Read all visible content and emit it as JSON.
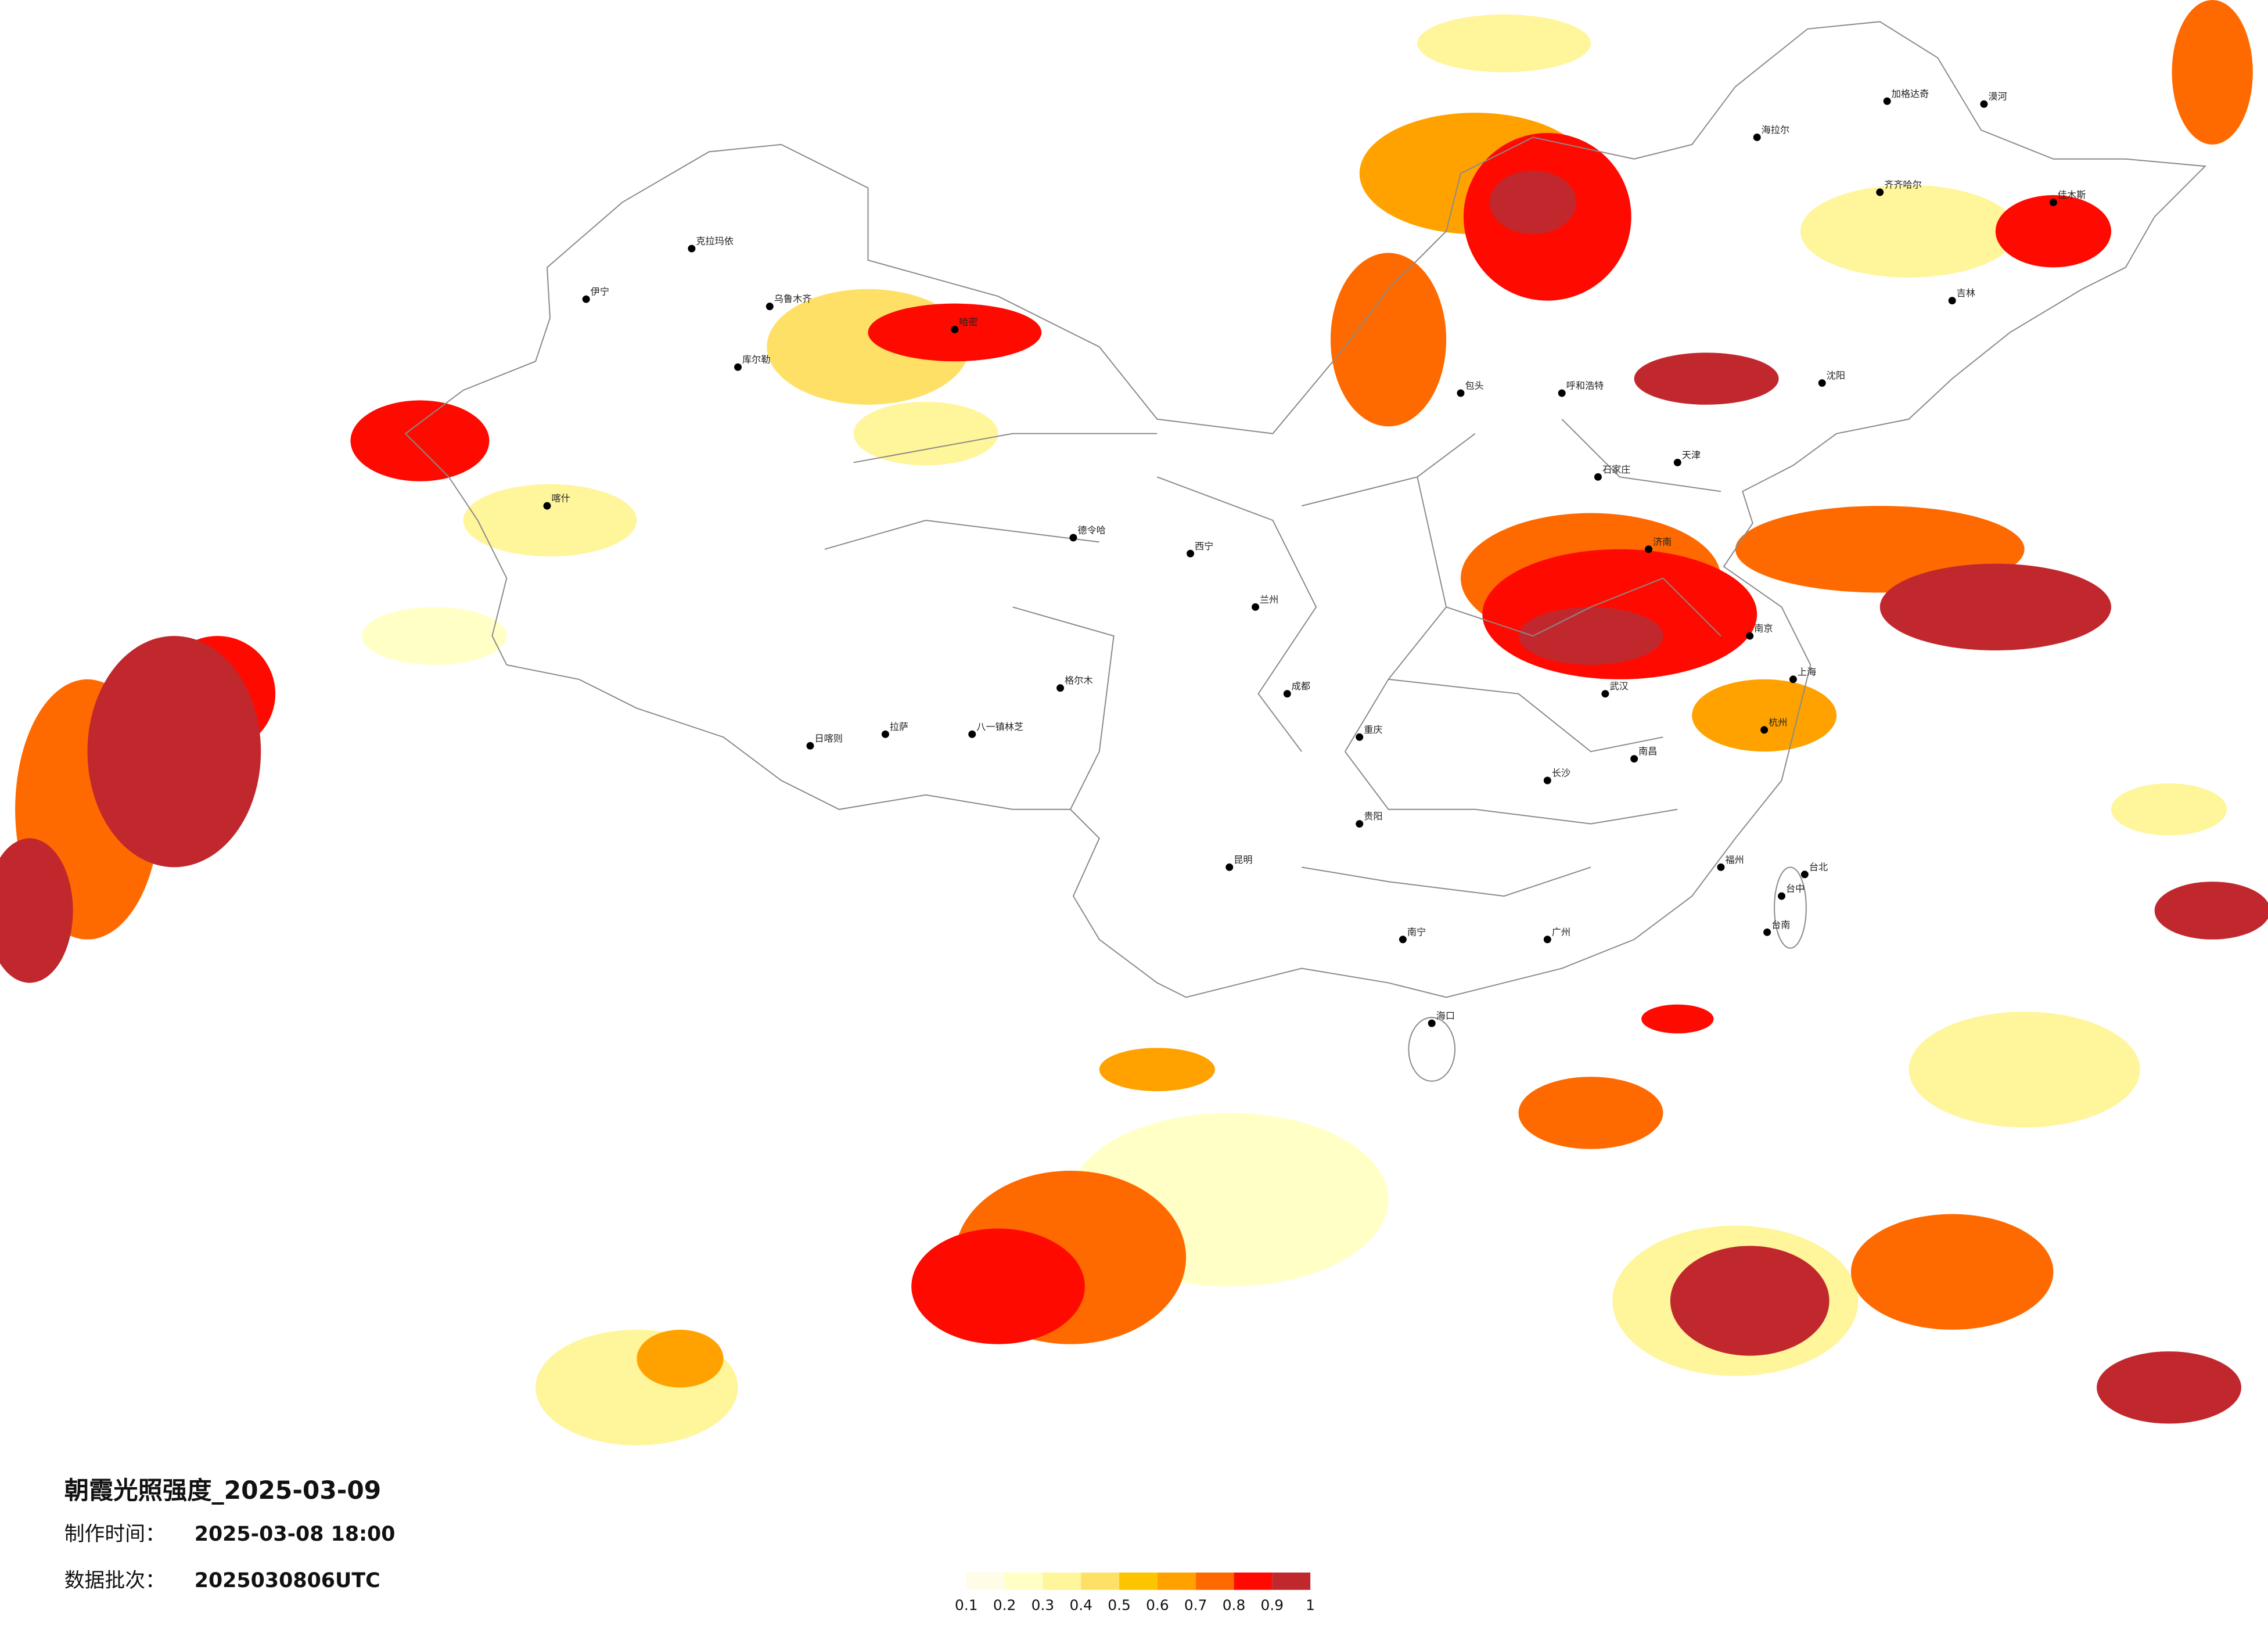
{
  "title": "朝霞光照强度_2025-03-09",
  "made_label": "制作时间：",
  "made_time": "2025-03-08 18:00",
  "batch_label": "数据批次：",
  "batch": "2025030806UTC",
  "colorbar": {
    "ticks": [
      0.1,
      0.2,
      0.3,
      0.4,
      0.5,
      0.6,
      0.7,
      0.8,
      0.9,
      1
    ],
    "colors": [
      "#fffde8",
      "#ffffc6",
      "#fff59a",
      "#ffe066",
      "#ffc400",
      "#ffa200",
      "#ff6a00",
      "#ff0a00",
      "#c0282e"
    ]
  },
  "cities": [
    {
      "name": "克拉玛依"
    },
    {
      "name": "伊宁"
    },
    {
      "name": "乌鲁木齐"
    },
    {
      "name": "库尔勒"
    },
    {
      "name": "哈密"
    },
    {
      "name": "喀什"
    },
    {
      "name": "日喀则"
    },
    {
      "name": "拉萨"
    },
    {
      "name": "八一镇林芝"
    },
    {
      "name": "格尔木"
    },
    {
      "name": "德令哈"
    },
    {
      "name": "西宁"
    },
    {
      "name": "兰州"
    },
    {
      "name": "包头"
    },
    {
      "name": "呼和浩特"
    },
    {
      "name": "石家庄"
    },
    {
      "name": "天津"
    },
    {
      "name": "济南"
    },
    {
      "name": "沈阳"
    },
    {
      "name": "吉林"
    },
    {
      "name": "齐齐哈尔"
    },
    {
      "name": "佳木斯"
    },
    {
      "name": "海拉尔"
    },
    {
      "name": "加格达奇"
    },
    {
      "name": "漠河"
    },
    {
      "name": "南京"
    },
    {
      "name": "上海"
    },
    {
      "name": "杭州"
    },
    {
      "name": "武汉"
    },
    {
      "name": "长沙"
    },
    {
      "name": "南昌"
    },
    {
      "name": "福州"
    },
    {
      "name": "广州"
    },
    {
      "name": "南宁"
    },
    {
      "name": "海口"
    },
    {
      "name": "昆明"
    },
    {
      "name": "贵阳"
    },
    {
      "name": "成都"
    },
    {
      "name": "重庆"
    },
    {
      "name": "台北"
    },
    {
      "name": "台中"
    },
    {
      "name": "台南"
    }
  ]
}
